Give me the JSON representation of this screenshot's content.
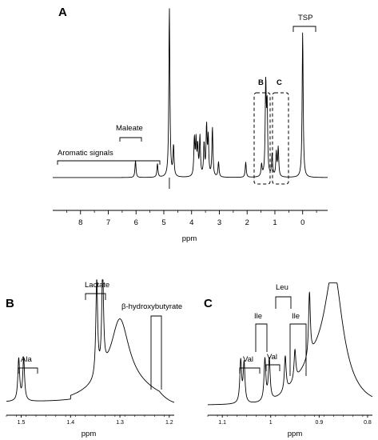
{
  "chart_data": [
    {
      "type": "line",
      "panel": "A",
      "xlabel": "ppm",
      "x_reversed": true,
      "xlim": [
        9.0,
        -0.9
      ],
      "xticks": [
        8,
        7,
        6,
        5,
        4,
        3,
        2,
        1,
        0
      ],
      "axis_style": "ticks-only, no frame, no grid",
      "annotations": [
        "Aromatic signals",
        "Maleate",
        "TSP",
        "B",
        "C"
      ],
      "peaks": [
        {
          "ppm": 6.02,
          "height": 0.1
        },
        {
          "ppm": 5.23,
          "height": 0.08
        },
        {
          "ppm": 4.8,
          "height": 1.0
        },
        {
          "ppm": 4.65,
          "height": 0.18
        },
        {
          "ppm": 3.9,
          "height": 0.22
        },
        {
          "ppm": 3.84,
          "height": 0.2
        },
        {
          "ppm": 3.78,
          "height": 0.17
        },
        {
          "ppm": 3.7,
          "height": 0.23
        },
        {
          "ppm": 3.55,
          "height": 0.19
        },
        {
          "ppm": 3.46,
          "height": 0.29
        },
        {
          "ppm": 3.4,
          "height": 0.22
        },
        {
          "ppm": 3.25,
          "height": 0.29
        },
        {
          "ppm": 3.03,
          "height": 0.09
        },
        {
          "ppm": 2.05,
          "height": 0.09
        },
        {
          "ppm": 1.48,
          "height": 0.07
        },
        {
          "ppm": 1.33,
          "height": 0.54
        },
        {
          "ppm": 1.28,
          "height": 0.4
        },
        {
          "ppm": 1.1,
          "height": 0.13
        },
        {
          "ppm": 0.95,
          "height": 0.14
        },
        {
          "ppm": 0.88,
          "height": 0.17
        },
        {
          "ppm": 0.0,
          "height": 0.86
        }
      ]
    },
    {
      "type": "line",
      "panel": "B",
      "xlabel": "ppm",
      "x_reversed": true,
      "xlim": [
        1.53,
        1.19
      ],
      "xticks": [
        1.5,
        1.4,
        1.3,
        1.2
      ],
      "annotations": [
        "Ala",
        "Lactate",
        "β-hydroxybutyrate"
      ],
      "peaks": [
        {
          "ppm": 1.505,
          "height": 0.36,
          "label": "Ala"
        },
        {
          "ppm": 1.495,
          "height": 0.36,
          "label": "Ala"
        },
        {
          "ppm": 1.347,
          "height": 0.83,
          "label": "Lactate"
        },
        {
          "ppm": 1.335,
          "height": 0.86,
          "label": "Lactate"
        },
        {
          "ppm": 1.3,
          "height": 0.56,
          "label": "β-hydroxybutyrate",
          "broad": true
        }
      ]
    },
    {
      "type": "line",
      "panel": "C",
      "xlabel": "ppm",
      "x_reversed": true,
      "xlim": [
        1.13,
        0.79
      ],
      "xticks": [
        1.1,
        1.0,
        0.9,
        0.8
      ],
      "annotations": [
        "Val",
        "Ile",
        "Leu",
        "Val",
        "Ile"
      ],
      "peaks": [
        {
          "ppm": 1.062,
          "height": 0.36,
          "label": "Val"
        },
        {
          "ppm": 1.055,
          "height": 0.34,
          "label": "Val"
        },
        {
          "ppm": 1.012,
          "height": 0.36,
          "label": "Val"
        },
        {
          "ppm": 1.003,
          "height": 0.35,
          "label": "Val"
        },
        {
          "ppm": 0.97,
          "height": 0.3,
          "label": "Leu"
        },
        {
          "ppm": 0.95,
          "height": 0.26,
          "label": "Ile"
        },
        {
          "ppm": 0.92,
          "height": 0.55
        },
        {
          "ppm": 0.87,
          "height": 0.93,
          "broad": true
        }
      ]
    }
  ]
}
